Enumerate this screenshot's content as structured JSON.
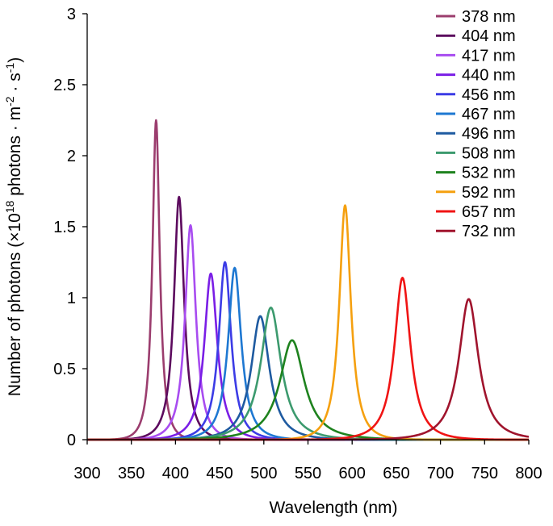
{
  "chart_data": {
    "type": "line",
    "title": "",
    "xlabel": "Wavelength (nm)",
    "ylabel_parts": [
      "Number of photons (×10",
      "18",
      " photons · m",
      "-2",
      " · s",
      "-1",
      ")"
    ],
    "xlim": [
      300,
      800
    ],
    "ylim": [
      0,
      3
    ],
    "x_ticks": [
      "300",
      "350",
      "400",
      "450",
      "500",
      "550",
      "600",
      "650",
      "700",
      "750",
      "800"
    ],
    "y_ticks": [
      "0",
      "0.5",
      "1",
      "1.5",
      "2",
      "2.5",
      "3"
    ],
    "grid": false,
    "legend_position": "top-right",
    "series": [
      {
        "name": "378 nm",
        "color": "#9b3d6e",
        "peak_x": 378,
        "peak_y": 2.25,
        "fwhm": 10
      },
      {
        "name": "404 nm",
        "color": "#5c0a5e",
        "peak_x": 404,
        "peak_y": 1.71,
        "fwhm": 14
      },
      {
        "name": "417 nm",
        "color": "#a84cf0",
        "peak_x": 417,
        "peak_y": 1.51,
        "fwhm": 15
      },
      {
        "name": "440 nm",
        "color": "#7a1ee6",
        "peak_x": 440,
        "peak_y": 1.17,
        "fwhm": 18
      },
      {
        "name": "456 nm",
        "color": "#3c3ce6",
        "peak_x": 456,
        "peak_y": 1.25,
        "fwhm": 17
      },
      {
        "name": "467 nm",
        "color": "#1e78d2",
        "peak_x": 467,
        "peak_y": 1.21,
        "fwhm": 18
      },
      {
        "name": "496 nm",
        "color": "#1e5aa0",
        "peak_x": 496,
        "peak_y": 0.87,
        "fwhm": 25
      },
      {
        "name": "508 nm",
        "color": "#3c9a6e",
        "peak_x": 508,
        "peak_y": 0.93,
        "fwhm": 28
      },
      {
        "name": "532 nm",
        "color": "#1e821e",
        "peak_x": 532,
        "peak_y": 0.7,
        "fwhm": 34
      },
      {
        "name": "592 nm",
        "color": "#f5a00f",
        "peak_x": 592,
        "peak_y": 1.65,
        "fwhm": 16
      },
      {
        "name": "657 nm",
        "color": "#f01414",
        "peak_x": 657,
        "peak_y": 1.14,
        "fwhm": 22
      },
      {
        "name": "732 nm",
        "color": "#a0142d",
        "peak_x": 732,
        "peak_y": 0.99,
        "fwhm": 27
      }
    ]
  }
}
